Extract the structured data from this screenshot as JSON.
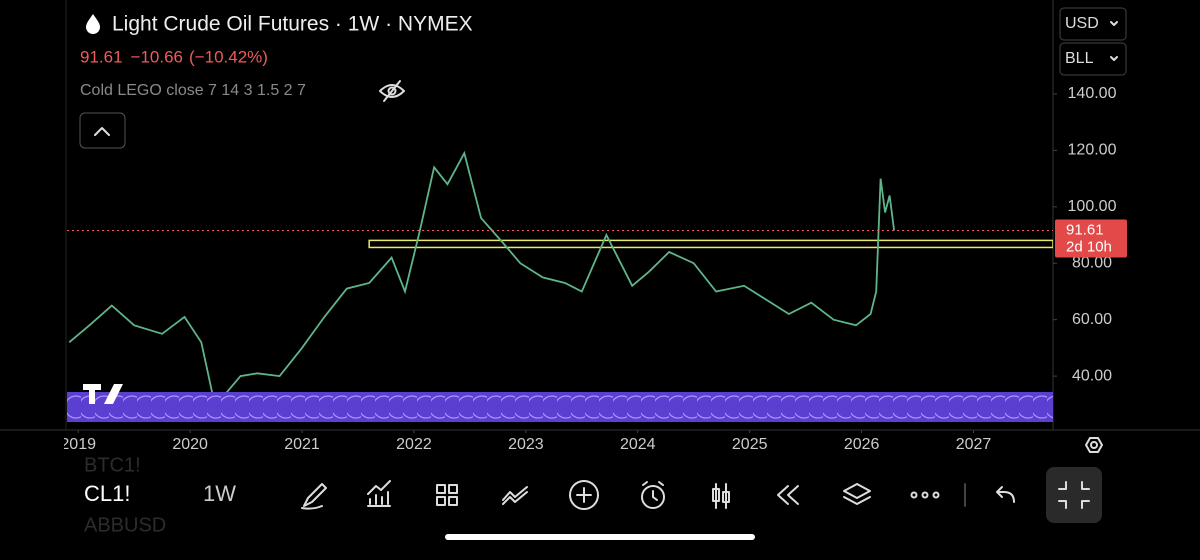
{
  "header": {
    "title": "Light Crude Oil Futures · 1W · NYMEX",
    "change": "−10.66",
    "change_pct": "(−10.42%)",
    "indicator": "Cold LEGO close 7 14 3 1.5 2 7",
    "currency": "USD",
    "unit": "BLL"
  },
  "chart_data": {
    "type": "line",
    "series": [
      {
        "name": "CL1!",
        "color": "#5fb58a",
        "x": [
          2018.92,
          2019.1,
          2019.3,
          2019.5,
          2019.75,
          2019.95,
          2020.1,
          2020.22,
          2020.3,
          2020.45,
          2020.6,
          2020.8,
          2021.0,
          2021.2,
          2021.4,
          2021.6,
          2021.8,
          2021.92,
          2022.05,
          2022.18,
          2022.3,
          2022.45,
          2022.6,
          2022.8,
          2022.95,
          2023.15,
          2023.35,
          2023.5,
          2023.72,
          2023.95,
          2024.1,
          2024.28,
          2024.5,
          2024.7,
          2024.95,
          2025.15,
          2025.35,
          2025.55,
          2025.75,
          2025.95,
          2026.08,
          2026.13,
          2026.17,
          2026.21,
          2026.25,
          2026.29
        ],
        "values": [
          52,
          58,
          65,
          58,
          55,
          61,
          52,
          30,
          33,
          40,
          41,
          40,
          50,
          61,
          71,
          73,
          82,
          70,
          91,
          114,
          108,
          119,
          96,
          87,
          80,
          75,
          73,
          70,
          90,
          72,
          77,
          84,
          80,
          70,
          72,
          67,
          62,
          66,
          60,
          58,
          62,
          70,
          110,
          98,
          104,
          91.61
        ]
      }
    ],
    "countdown": "2d 10h",
    "zone": [
      85.6,
      88.1
    ],
    "xlim": [
      2018.9,
      2027.71
    ],
    "xticks": [
      2019,
      2020,
      2021,
      2022,
      2023,
      2024,
      2025,
      2026,
      2027
    ],
    "ylim": [
      20.9,
      173.3
    ],
    "yticks": [
      {
        "value": 40,
        "label": "40.00"
      },
      {
        "value": 60,
        "label": "60.00"
      },
      {
        "value": 80,
        "label": "80.00"
      },
      {
        "value": 100,
        "label": "100.00"
      },
      {
        "value": 120,
        "label": "120.00"
      },
      {
        "value": 140,
        "label": "140.00"
      }
    ]
  },
  "toolbar": {
    "symbol": "CL1!",
    "interval": "1W",
    "behind": [
      "BTC1!",
      "ABBUSD"
    ]
  }
}
